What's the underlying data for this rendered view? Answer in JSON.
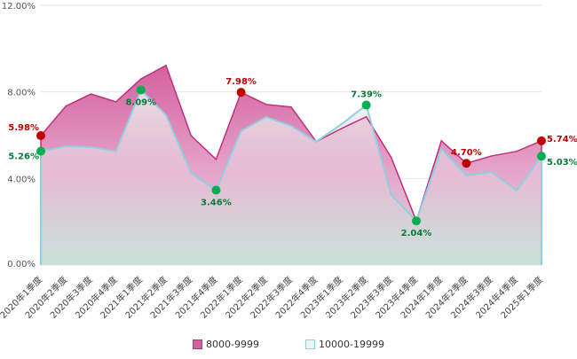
{
  "chart_data": {
    "type": "area",
    "title": "",
    "xlabel": "",
    "ylabel": "",
    "ylim": [
      0,
      12
    ],
    "yticks": [
      "0.00%",
      "4.00%",
      "8.00%",
      "12.00%"
    ],
    "ytick_values": [
      0,
      4,
      8,
      12
    ],
    "grid": true,
    "legend_position": "bottom",
    "categories": [
      "2020年1季度",
      "2020年2季度",
      "2020年3季度",
      "2020年4季度",
      "2021年1季度",
      "2021年2季度",
      "2021年3季度",
      "2021年4季度",
      "2022年1季度",
      "2022年2季度",
      "2022年3季度",
      "2022年4季度",
      "2023年1季度",
      "2023年2季度",
      "2023年3季度",
      "2023年4季度",
      "2024年1季度",
      "2024年2季度",
      "2024年3季度",
      "2024年4季度",
      "2025年1季度"
    ],
    "series": [
      {
        "name": "8000-9999",
        "color": "#c0307a",
        "fill_top": "#d4619f",
        "marker_color": "#c00000",
        "values": [
          5.98,
          7.34,
          7.9,
          7.54,
          8.6,
          9.22,
          5.98,
          4.88,
          7.98,
          7.42,
          7.3,
          5.7,
          6.3,
          6.85,
          4.96,
          2.04,
          5.74,
          4.7,
          5.04,
          5.25,
          5.74
        ],
        "labels": [
          {
            "index": 0,
            "text": "5.98%"
          },
          {
            "index": 8,
            "text": "7.98%"
          },
          {
            "index": 17,
            "text": "4.70%"
          },
          {
            "index": 20,
            "text": "5.74%"
          }
        ]
      },
      {
        "name": "10000-19999",
        "color": "#8ecfe0",
        "fill_top": "#e8f2f0",
        "marker_color": "#00b050",
        "values": [
          5.26,
          5.49,
          5.45,
          5.25,
          8.09,
          6.93,
          4.26,
          3.46,
          6.19,
          6.84,
          6.43,
          5.7,
          6.5,
          7.39,
          3.24,
          2.04,
          5.37,
          4.14,
          4.3,
          3.44,
          5.03
        ],
        "labels": [
          {
            "index": 0,
            "text": "5.26%"
          },
          {
            "index": 4,
            "text": "8.09%"
          },
          {
            "index": 7,
            "text": "3.46%"
          },
          {
            "index": 13,
            "text": "7.39%"
          },
          {
            "index": 15,
            "text": "2.04%"
          },
          {
            "index": 20,
            "text": "5.03%"
          }
        ]
      }
    ]
  }
}
